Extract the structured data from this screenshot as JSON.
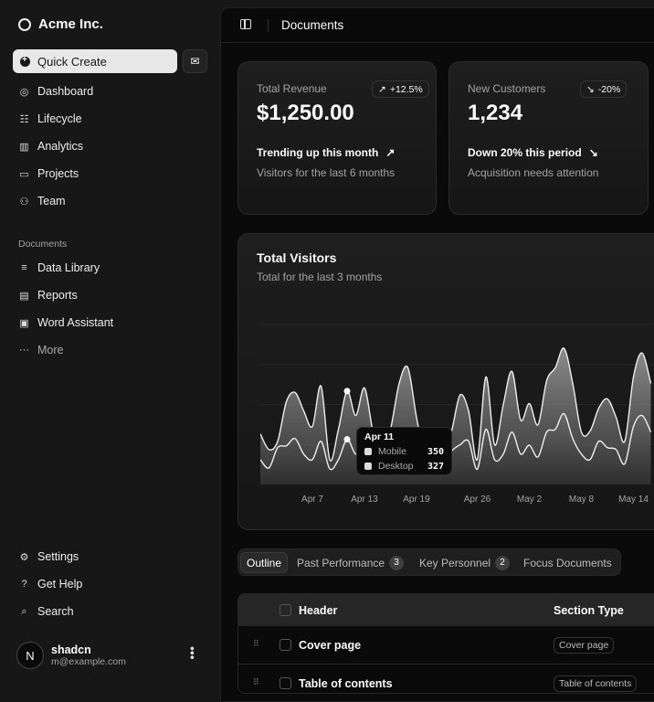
{
  "sidebar": {
    "brand": "Acme Inc.",
    "quick_create": "Quick Create",
    "nav": [
      {
        "label": "Dashboard",
        "icon": "gauge-icon"
      },
      {
        "label": "Lifecycle",
        "icon": "list-icon"
      },
      {
        "label": "Analytics",
        "icon": "bar-chart-icon"
      },
      {
        "label": "Projects",
        "icon": "folder-icon"
      },
      {
        "label": "Team",
        "icon": "users-icon"
      }
    ],
    "documents_label": "Documents",
    "documents": [
      {
        "label": "Data Library",
        "icon": "database-icon"
      },
      {
        "label": "Reports",
        "icon": "clipboard-icon"
      },
      {
        "label": "Word Assistant",
        "icon": "file-icon"
      },
      {
        "label": "More",
        "icon": "dots-icon"
      }
    ],
    "secondary": [
      {
        "label": "Settings",
        "icon": "gear-icon"
      },
      {
        "label": "Get Help",
        "icon": "help-icon"
      },
      {
        "label": "Search",
        "icon": "search-icon"
      }
    ],
    "user": {
      "initial": "N",
      "name": "shadcn",
      "email": "m@example.com"
    }
  },
  "header": {
    "title": "Documents"
  },
  "cards": [
    {
      "label": "Total Revenue",
      "value": "$1,250.00",
      "badge": "+12.5%",
      "badge_icon": "↗",
      "trend": "Trending up this month",
      "trend_icon": "↗",
      "sub": "Visitors for the last 6 months"
    },
    {
      "label": "New Customers",
      "value": "1,234",
      "badge": "-20%",
      "badge_icon": "↘",
      "trend": "Down 20% this period",
      "trend_icon": "↘",
      "sub": "Acquisition needs attention"
    }
  ],
  "visitors": {
    "title": "Total Visitors",
    "subtitle": "Total for the last 3 months"
  },
  "chart_data": {
    "type": "area",
    "stacked": true,
    "x": [
      "Apr 1",
      "Apr 2",
      "Apr 3",
      "Apr 4",
      "Apr 5",
      "Apr 6",
      "Apr 7",
      "Apr 8",
      "Apr 9",
      "Apr 10",
      "Apr 11",
      "Apr 12",
      "Apr 13",
      "Apr 14",
      "Apr 15",
      "Apr 16",
      "Apr 17",
      "Apr 18",
      "Apr 19",
      "Apr 20",
      "Apr 21",
      "Apr 22",
      "Apr 23",
      "Apr 24",
      "Apr 25",
      "Apr 26",
      "Apr 27",
      "Apr 28",
      "Apr 29",
      "Apr 30",
      "May 1",
      "May 2",
      "May 3",
      "May 4",
      "May 5",
      "May 6",
      "May 7",
      "May 8",
      "May 9",
      "May 10",
      "May 11",
      "May 12",
      "May 13",
      "May 14",
      "May 15",
      "May 16"
    ],
    "xticks": [
      "Apr 7",
      "Apr 13",
      "Apr 19",
      "Apr 26",
      "May 2",
      "May 8",
      "May 14"
    ],
    "series": [
      {
        "name": "Desktop",
        "values": [
          180,
          120,
          267,
          280,
          333,
          220,
          180,
          313,
          113,
          180,
          327,
          220,
          287,
          200,
          130,
          160,
          190,
          210,
          180,
          100,
          120,
          140,
          240,
          287,
          313,
          110,
          400,
          180,
          220,
          380,
          220,
          285,
          200,
          380,
          400,
          513,
          333,
          220,
          180,
          313,
          267,
          253,
          150,
          420,
          500,
          380
        ]
      },
      {
        "name": "Mobile",
        "values": [
          187,
          133,
          46,
          320,
          334,
          313,
          240,
          400,
          67,
          220,
          350,
          280,
          413,
          180,
          130,
          240,
          543,
          637,
          307,
          100,
          130,
          160,
          140,
          360,
          220,
          70,
          380,
          107,
          360,
          440,
          247,
          302,
          233,
          373,
          447,
          474,
          400,
          160,
          207,
          240,
          353,
          234,
          163,
          360,
          453,
          353
        ]
      }
    ],
    "ylim": [
      0,
      1160
    ],
    "grid": true,
    "tooltip": {
      "date": "Apr 11",
      "rows": [
        {
          "name": "Mobile",
          "value": "350"
        },
        {
          "name": "Desktop",
          "value": "327"
        }
      ]
    }
  },
  "tabs": [
    {
      "label": "Outline",
      "active": true
    },
    {
      "label": "Past Performance",
      "count": "3"
    },
    {
      "label": "Key Personnel",
      "count": "2"
    },
    {
      "label": "Focus Documents"
    }
  ],
  "table": {
    "columns": [
      "Header",
      "Section Type"
    ],
    "rows": [
      {
        "header": "Cover page",
        "type": "Cover page"
      },
      {
        "header": "Table of contents",
        "type": "Table of contents"
      }
    ]
  }
}
